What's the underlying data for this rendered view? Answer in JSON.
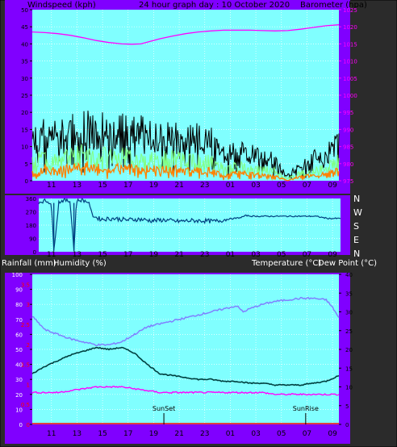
{
  "header": {
    "windspeed_label": "Windspeed (kph)",
    "graph_title": "24 hour graph day : 10 October 2020",
    "barometer_label": "Barometer (hpa)"
  },
  "middle_header": {
    "rainfall_label": "Rainfall (mm)",
    "humidity_label": "Humidity (%)",
    "temperature_label": "Temperature (°C)",
    "dewpoint_label": "Dew Point (°C)"
  },
  "x_ticks": [
    "11",
    "13",
    "15",
    "17",
    "19",
    "21",
    "23",
    "01",
    "03",
    "05",
    "07",
    "09"
  ],
  "colors": {
    "frame": "#8000ff",
    "plot_bg": "#80ffff",
    "grid": "#ffffff",
    "gust": "#000000",
    "wind_avg": "#80ff80",
    "wind_min": "#ff8000",
    "barometer": "#ff00ff",
    "direction": "#004080",
    "humidity": "#8080ff",
    "temperature": "#004040",
    "dewpoint": "#ff00ff",
    "rainfall": "#ff0000"
  },
  "chart_data": [
    {
      "type": "line",
      "title": "24 hour graph day : 10 October 2020",
      "ylabel": "Windspeed (kph)",
      "ylim": [
        0,
        50
      ],
      "yticks": [
        0,
        5,
        10,
        15,
        20,
        25,
        30,
        35,
        40,
        45,
        50
      ],
      "y2label": "Barometer (hpa)",
      "y2lim": [
        975,
        1025
      ],
      "y2ticks": [
        975,
        980,
        985,
        990,
        995,
        1000,
        1005,
        1010,
        1015,
        1020,
        1025
      ],
      "grid": true,
      "series": [
        {
          "axis": "y2",
          "x": [
            9.0,
            10,
            11,
            12,
            13,
            14,
            15,
            16,
            16.8,
            17.5,
            18,
            19,
            20,
            21,
            22,
            23,
            24,
            25,
            26,
            27,
            28,
            29,
            30,
            31,
            32,
            33
          ],
          "values": [
            1018.5,
            1018.3,
            1018.0,
            1017.5,
            1016.8,
            1016.0,
            1015.4,
            1015.0,
            1014.9,
            1015.0,
            1015.5,
            1016.5,
            1017.3,
            1018.0,
            1018.5,
            1018.8,
            1019.0,
            1019.0,
            1019.0,
            1018.9,
            1018.8,
            1018.9,
            1019.3,
            1019.8,
            1020.3,
            1020.6
          ]
        },
        {
          "x": [
            9,
            10,
            11,
            12,
            13,
            14,
            15,
            16,
            17,
            18,
            19,
            20,
            21,
            22,
            23,
            23.5,
            24,
            25,
            26,
            27,
            28,
            28.5,
            29,
            30,
            31,
            32,
            33
          ],
          "values": [
            16,
            19,
            18,
            20,
            22,
            19,
            21,
            20,
            20,
            19,
            17,
            18,
            17,
            17,
            16,
            12,
            10,
            13,
            11,
            10,
            8,
            4,
            2,
            6,
            9,
            10,
            17
          ]
        },
        {
          "x": [
            9,
            10,
            11,
            12,
            13,
            14,
            15,
            16,
            17,
            18,
            19,
            20,
            21,
            22,
            23,
            23.5,
            24,
            25,
            26,
            27,
            28,
            28.5,
            29,
            30,
            31,
            32,
            33
          ],
          "values": [
            8,
            9,
            8,
            10,
            11,
            10,
            10,
            10,
            9,
            9,
            9,
            9,
            8,
            8,
            8,
            6,
            5,
            6,
            5,
            5,
            4,
            2,
            1,
            3,
            4,
            5,
            8
          ]
        },
        {
          "x": [
            9,
            10,
            11,
            12,
            13,
            14,
            15,
            16,
            17,
            18,
            19,
            20,
            21,
            22,
            23,
            23.5,
            24,
            25,
            26,
            27,
            28,
            28.5,
            29,
            30,
            31,
            32,
            33
          ],
          "values": [
            4,
            5,
            4,
            5,
            6,
            5,
            5,
            5,
            5,
            5,
            4,
            5,
            4,
            4,
            4,
            3,
            2,
            3,
            3,
            2,
            2,
            1,
            0,
            2,
            2,
            3,
            4
          ]
        }
      ]
    },
    {
      "type": "line",
      "ylim": [
        0,
        360
      ],
      "yticks": [
        0,
        90,
        180,
        270,
        360
      ],
      "y2ticks": [
        "N",
        "W",
        "S",
        "E",
        "N"
      ],
      "grid": true,
      "series": [
        {
          "x": [
            9,
            9.5,
            10,
            10.2,
            10.6,
            11,
            11.5,
            11.8,
            12,
            12.5,
            13,
            13.3,
            13.6,
            14,
            15,
            16,
            17,
            18,
            19,
            20,
            21,
            22,
            23,
            24,
            25,
            25.5,
            26,
            27,
            28,
            29,
            30,
            31,
            32,
            33
          ],
          "values": [
            335,
            345,
            330,
            10,
            335,
            350,
            340,
            10,
            345,
            350,
            330,
            240,
            230,
            220,
            225,
            215,
            220,
            210,
            215,
            205,
            210,
            210,
            205,
            220,
            230,
            245,
            240,
            240,
            240,
            240,
            240,
            240,
            225,
            225
          ]
        }
      ]
    },
    {
      "type": "line",
      "ylabel": "Humidity (%)",
      "ylim": [
        0,
        100
      ],
      "yticks": [
        0,
        10,
        20,
        30,
        40,
        50,
        60,
        70,
        80,
        90,
        100
      ],
      "y2label": "Temperature (°C)",
      "y2lim": [
        0,
        40
      ],
      "y2ticks": [
        0,
        5,
        10,
        15,
        20,
        25,
        30,
        35,
        40
      ],
      "rainfall_ticks": [
        "0",
        "0.5",
        "1",
        "1.5",
        "2",
        "2.5",
        "3",
        "3.5"
      ],
      "grid": true,
      "annotations": [
        {
          "text": "SunSet",
          "x": 19.3
        },
        {
          "text": "SunRise",
          "x": 30.4
        }
      ],
      "series": [
        {
          "x": [
            9,
            10,
            11,
            12,
            13,
            14,
            15,
            16,
            17,
            18,
            19,
            20,
            21,
            22,
            23,
            24,
            25,
            25.5,
            26,
            27,
            28,
            29,
            30,
            31,
            32,
            32.5,
            33
          ],
          "values": [
            72,
            63,
            60,
            57,
            55,
            53,
            53,
            55,
            60,
            65,
            67,
            69,
            71,
            73,
            75,
            77,
            79,
            75,
            77,
            80,
            82,
            83,
            84,
            84,
            83,
            78,
            71
          ]
        },
        {
          "x": [
            9,
            10,
            11,
            12,
            13,
            14,
            15,
            16,
            17,
            18,
            19,
            20,
            21,
            22,
            23,
            24,
            25,
            26,
            27,
            28,
            29,
            30,
            31,
            32,
            33
          ],
          "values": [
            13.5,
            15.5,
            17,
            18.5,
            19.5,
            20.5,
            20,
            20.5,
            19,
            16,
            13.5,
            13,
            12.5,
            12,
            12,
            11.5,
            11.5,
            11,
            11,
            10.5,
            10.5,
            10.5,
            11,
            11.5,
            13
          ]
        },
        {
          "x": [
            9,
            10,
            11,
            12,
            13,
            14,
            15,
            16,
            17,
            18,
            19,
            20,
            21,
            22,
            23,
            24,
            25,
            26,
            27,
            28,
            29,
            30,
            31,
            32,
            33
          ],
          "values": [
            8.5,
            8.5,
            8.5,
            9,
            9.5,
            10,
            10,
            10,
            9.5,
            9,
            8.5,
            8.5,
            8.5,
            8.5,
            8.5,
            8.5,
            8.5,
            8.5,
            8.5,
            8,
            8,
            8,
            8,
            8,
            8
          ]
        },
        {
          "x": [
            9,
            33
          ],
          "values": [
            0,
            0
          ]
        }
      ]
    }
  ]
}
